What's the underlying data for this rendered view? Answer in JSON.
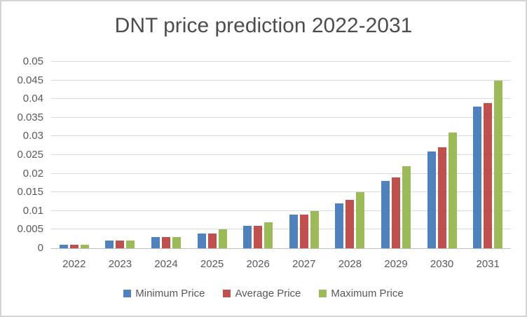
{
  "chart_data": {
    "type": "bar",
    "title": "DNT price prediction 2022-2031",
    "categories": [
      "2022",
      "2023",
      "2024",
      "2025",
      "2026",
      "2027",
      "2028",
      "2029",
      "2030",
      "2031"
    ],
    "series": [
      {
        "name": "Minimum Price",
        "color": "#4F81BD",
        "values": [
          0.001,
          0.002,
          0.003,
          0.004,
          0.006,
          0.009,
          0.012,
          0.018,
          0.026,
          0.038
        ]
      },
      {
        "name": "Average Price",
        "color": "#C0504D",
        "values": [
          0.001,
          0.002,
          0.003,
          0.004,
          0.006,
          0.009,
          0.013,
          0.019,
          0.027,
          0.039
        ]
      },
      {
        "name": "Maximum Price",
        "color": "#9BBB59",
        "values": [
          0.001,
          0.002,
          0.003,
          0.005,
          0.007,
          0.01,
          0.015,
          0.022,
          0.031,
          0.045
        ]
      }
    ],
    "xlabel": "",
    "ylabel": "",
    "ylim": [
      0,
      0.05
    ],
    "yticks": [
      "0",
      "0.005",
      "0.01",
      "0.015",
      "0.02",
      "0.025",
      "0.03",
      "0.035",
      "0.04",
      "0.045",
      "0.05"
    ],
    "grid": true,
    "legend_position": "bottom"
  },
  "colors": {
    "gridline": "#d9d9d9",
    "axis_line": "#bfbfbf",
    "text": "#595959",
    "title_text": "#4d4d4d",
    "border": "#d4d4d4",
    "background": "#ffffff"
  }
}
